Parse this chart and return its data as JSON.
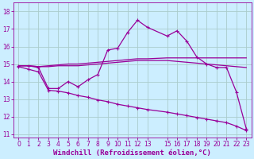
{
  "background_color": "#cceeff",
  "grid_color": "#aacccc",
  "line_color": "#990099",
  "xlabel": "Windchill (Refroidissement éolien,°C)",
  "xlabel_fontsize": 6.5,
  "tick_fontsize": 5.5,
  "ylim": [
    10.8,
    18.5
  ],
  "xlim": [
    -0.5,
    23.5
  ],
  "yticks": [
    11,
    12,
    13,
    14,
    15,
    16,
    17,
    18
  ],
  "xticks": [
    0,
    1,
    2,
    3,
    4,
    5,
    6,
    7,
    8,
    9,
    10,
    11,
    12,
    13,
    15,
    16,
    17,
    18,
    19,
    20,
    21,
    22,
    23
  ],
  "line1_x": [
    0,
    1,
    2,
    3,
    4,
    5,
    6,
    7,
    8,
    9,
    10,
    11,
    12,
    13,
    15,
    16,
    17,
    18,
    19,
    20,
    21,
    22,
    23
  ],
  "line1_y": [
    14.9,
    14.9,
    14.8,
    13.6,
    13.6,
    14.0,
    13.7,
    14.1,
    14.4,
    15.8,
    15.9,
    16.8,
    17.5,
    17.1,
    16.6,
    16.9,
    16.3,
    15.4,
    15.0,
    14.8,
    14.8,
    13.4,
    11.3
  ],
  "line2_x": [
    0,
    1,
    2,
    3,
    4,
    5,
    6,
    7,
    8,
    9,
    10,
    11,
    12,
    13,
    15,
    16,
    17,
    18,
    19,
    20,
    21,
    22,
    23
  ],
  "line2_y": [
    14.9,
    14.9,
    14.85,
    14.9,
    14.95,
    15.0,
    15.0,
    15.05,
    15.1,
    15.15,
    15.2,
    15.25,
    15.3,
    15.3,
    15.35,
    15.35,
    15.35,
    15.35,
    15.35,
    15.35,
    15.35,
    15.35,
    15.35
  ],
  "line3_x": [
    0,
    1,
    2,
    3,
    4,
    5,
    6,
    7,
    8,
    9,
    10,
    11,
    12,
    13,
    15,
    16,
    17,
    18,
    19,
    20,
    21,
    22,
    23
  ],
  "line3_y": [
    14.9,
    14.9,
    14.85,
    14.85,
    14.9,
    14.9,
    14.9,
    14.95,
    15.0,
    15.05,
    15.1,
    15.15,
    15.2,
    15.2,
    15.2,
    15.15,
    15.1,
    15.05,
    15.0,
    14.95,
    14.9,
    14.85,
    14.8
  ],
  "line4_x": [
    0,
    1,
    2,
    3,
    4,
    5,
    6,
    7,
    8,
    9,
    10,
    11,
    12,
    13,
    15,
    16,
    17,
    18,
    19,
    20,
    21,
    22,
    23
  ],
  "line4_y": [
    14.85,
    14.7,
    14.55,
    13.5,
    13.45,
    13.35,
    13.2,
    13.1,
    12.95,
    12.85,
    12.7,
    12.6,
    12.5,
    12.4,
    12.25,
    12.15,
    12.05,
    11.95,
    11.85,
    11.75,
    11.65,
    11.45,
    11.2
  ]
}
